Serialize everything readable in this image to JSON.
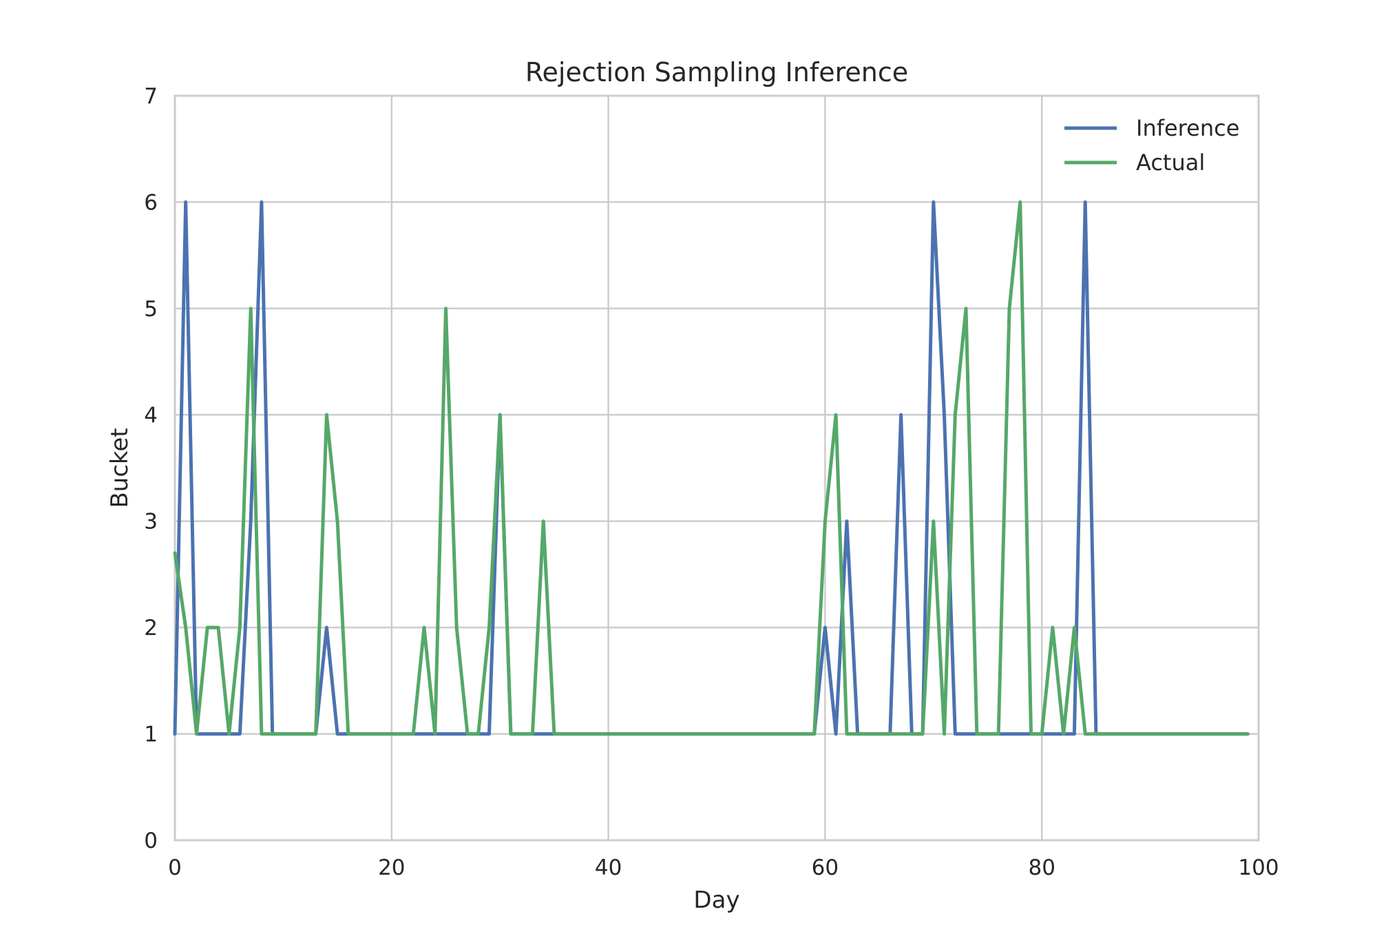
{
  "chart_data": {
    "type": "line",
    "title": "Rejection Sampling Inference",
    "xlabel": "Day",
    "ylabel": "Bucket",
    "xlim": [
      0,
      100
    ],
    "ylim": [
      0,
      7
    ],
    "xticks": [
      0,
      20,
      40,
      60,
      80,
      100
    ],
    "yticks": [
      0,
      1,
      2,
      3,
      4,
      5,
      6,
      7
    ],
    "grid": true,
    "legend_position": "top-right",
    "x": [
      0,
      1,
      2,
      3,
      4,
      5,
      6,
      7,
      8,
      9,
      10,
      11,
      12,
      13,
      14,
      15,
      16,
      17,
      18,
      19,
      20,
      21,
      22,
      23,
      24,
      25,
      26,
      27,
      28,
      29,
      30,
      31,
      32,
      33,
      34,
      35,
      36,
      37,
      38,
      39,
      40,
      41,
      42,
      43,
      44,
      45,
      46,
      47,
      48,
      49,
      50,
      51,
      52,
      53,
      54,
      55,
      56,
      57,
      58,
      59,
      60,
      61,
      62,
      63,
      64,
      65,
      66,
      67,
      68,
      69,
      70,
      71,
      72,
      73,
      74,
      75,
      76,
      77,
      78,
      79,
      80,
      81,
      82,
      83,
      84,
      85,
      86,
      87,
      88,
      89,
      90,
      91,
      92,
      93,
      94,
      95,
      96,
      97,
      98,
      99
    ],
    "series": [
      {
        "name": "Inference",
        "color": "#4c72b0",
        "values": [
          1,
          6,
          1,
          1,
          1,
          1,
          1,
          3,
          6,
          1,
          1,
          1,
          1,
          1,
          2,
          1,
          1,
          1,
          1,
          1,
          1,
          1,
          1,
          1,
          1,
          1,
          1,
          1,
          1,
          1,
          4,
          1,
          1,
          1,
          1,
          1,
          1,
          1,
          1,
          1,
          1,
          1,
          1,
          1,
          1,
          1,
          1,
          1,
          1,
          1,
          1,
          1,
          1,
          1,
          1,
          1,
          1,
          1,
          1,
          1,
          2,
          1,
          3,
          1,
          1,
          1,
          1,
          4,
          1,
          1,
          6,
          4,
          1,
          1,
          1,
          1,
          1,
          1,
          1,
          1,
          1,
          1,
          1,
          1,
          6,
          1,
          1,
          1,
          1,
          1,
          1,
          1,
          1,
          1,
          1,
          1,
          1,
          1,
          1,
          1
        ]
      },
      {
        "name": "Actual",
        "color": "#55a868",
        "values": [
          2.7,
          2,
          1,
          2,
          2,
          1,
          2,
          5,
          1,
          1,
          1,
          1,
          1,
          1,
          4,
          3,
          1,
          1,
          1,
          1,
          1,
          1,
          1,
          2,
          1,
          5,
          2,
          1,
          1,
          2,
          4,
          1,
          1,
          1,
          3,
          1,
          1,
          1,
          1,
          1,
          1,
          1,
          1,
          1,
          1,
          1,
          1,
          1,
          1,
          1,
          1,
          1,
          1,
          1,
          1,
          1,
          1,
          1,
          1,
          1,
          3,
          4,
          1,
          1,
          1,
          1,
          1,
          1,
          1,
          1,
          3,
          1,
          4,
          5,
          1,
          1,
          1,
          5,
          6,
          1,
          1,
          2,
          1,
          2,
          1,
          1,
          1,
          1,
          1,
          1,
          1,
          1,
          1,
          1,
          1,
          1,
          1,
          1,
          1,
          1
        ]
      }
    ]
  }
}
